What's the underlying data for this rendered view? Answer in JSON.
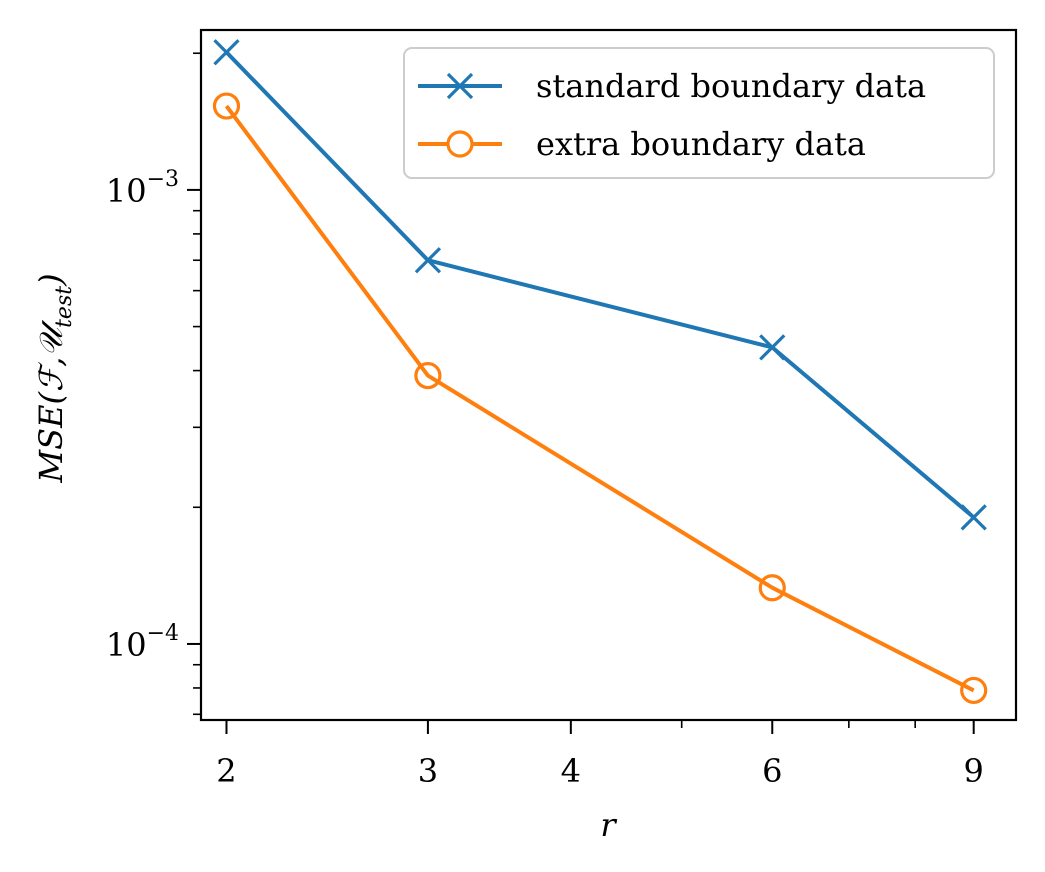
{
  "chart_data": {
    "type": "line",
    "title": "",
    "xlabel": "r",
    "ylabel": "MSE(ℱ,𝒰",
    "ylabel_subscript": "test",
    "ylabel_close": ")",
    "xscale": "log",
    "yscale": "log",
    "xlim": [
      1.9,
      9.8
    ],
    "ylim": [
      6.8e-05,
      0.00225
    ],
    "x_major_ticks": [
      {
        "value": 2,
        "label": "2"
      },
      {
        "value": 3,
        "label": "3"
      },
      {
        "value": 4,
        "label": "4"
      },
      {
        "value": 6,
        "label": "6"
      },
      {
        "value": 9,
        "label": "9"
      }
    ],
    "x_minor_ticks": [
      5,
      7,
      8
    ],
    "y_major_ticks": [
      {
        "value": 0.001,
        "base": "10",
        "exponent": "−3"
      },
      {
        "value": 0.0001,
        "base": "10",
        "exponent": "−4"
      }
    ],
    "y_minor_ticks": [
      7e-05,
      8e-05,
      9e-05,
      0.0002,
      0.0003,
      0.0004,
      0.0005,
      0.0006,
      0.0007,
      0.0008,
      0.0009,
      0.002
    ],
    "grid": false,
    "legend_position": "top-right",
    "series": [
      {
        "name": "standard boundary data",
        "color": "#1f77b4",
        "marker": "x",
        "x": [
          2,
          3,
          6,
          9
        ],
        "y": [
          0.00201,
          0.0007,
          0.00045,
          0.00019
        ]
      },
      {
        "name": "extra boundary data",
        "color": "#ff7f0e",
        "marker": "o",
        "x": [
          2,
          3,
          6,
          9
        ],
        "y": [
          0.00153,
          0.00039,
          0.000133,
          7.9e-05
        ]
      }
    ]
  }
}
